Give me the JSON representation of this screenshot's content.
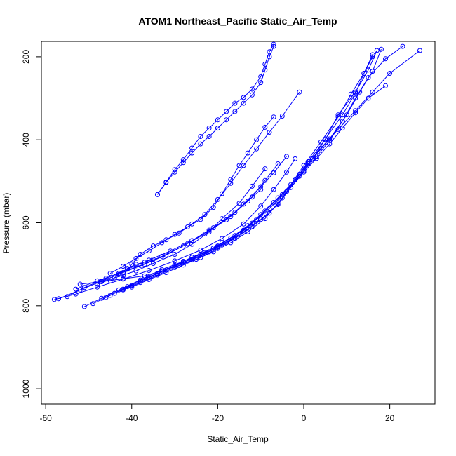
{
  "chart_data": {
    "type": "scatter",
    "title": "ATOM1 Northeast_Pacific Static_Air_Temp",
    "xlabel": "Static_Air_Temp",
    "ylabel": "Pressure (mbar)",
    "xlim": [
      -61,
      30.5
    ],
    "ylim": [
      1037,
      163
    ],
    "y_axis_reversed": true,
    "x_ticks": [
      -60,
      -40,
      -20,
      0,
      20
    ],
    "y_ticks": [
      200,
      400,
      600,
      800,
      1000
    ],
    "grid": false,
    "legend": "none",
    "marker": "open-circle",
    "series_color": "#0000ff",
    "series": [
      {
        "x": [
          -51,
          -47,
          -43,
          -38,
          -34,
          -30,
          -25,
          -20,
          -15,
          -11,
          -7,
          -3,
          0,
          4,
          8,
          11,
          14,
          16
        ],
        "y": [
          802,
          782,
          762,
          738,
          722,
          703,
          684,
          658,
          628,
          592,
          551,
          508,
          462,
          405,
          345,
          290,
          240,
          200
        ]
      },
      {
        "x": [
          -49,
          -45,
          -41,
          -37,
          -33,
          -28,
          -23,
          -19,
          -14,
          -10,
          -6,
          -2,
          1,
          5,
          8,
          12,
          15,
          17
        ],
        "y": [
          795,
          775,
          754,
          733,
          713,
          693,
          672,
          648,
          618,
          580,
          540,
          497,
          453,
          400,
          340,
          285,
          232,
          185
        ]
      },
      {
        "x": [
          -46,
          -42,
          -38,
          -34,
          -30,
          -26,
          -21,
          -17,
          -13,
          -9,
          -5,
          -1,
          2,
          5,
          9,
          12,
          14,
          16
        ],
        "y": [
          780,
          760,
          741,
          722,
          703,
          683,
          661,
          637,
          607,
          572,
          532,
          488,
          447,
          398,
          340,
          288,
          240,
          195
        ]
      },
      {
        "x": [
          -44,
          -40,
          -36,
          -32,
          -28,
          -24,
          -20,
          -16,
          -12,
          -8,
          -4,
          -1,
          2,
          6,
          10,
          13,
          16,
          18
        ],
        "y": [
          770,
          751,
          732,
          714,
          696,
          676,
          656,
          631,
          601,
          566,
          525,
          483,
          446,
          398,
          340,
          285,
          235,
          182
        ]
      },
      {
        "x": [
          -42,
          -38,
          -34,
          -30,
          -26,
          -22,
          -18,
          -14,
          -10,
          -6,
          -3,
          0,
          3,
          6,
          9,
          12,
          15,
          19,
          23
        ],
        "y": [
          762,
          744,
          726,
          708,
          690,
          670,
          648,
          622,
          592,
          556,
          515,
          475,
          440,
          402,
          355,
          300,
          250,
          205,
          175
        ]
      },
      {
        "x": [
          -40,
          -36,
          -32,
          -28,
          -24,
          -20,
          -16,
          -12,
          -8,
          -5,
          -2,
          1,
          4,
          8,
          12,
          16,
          20,
          27
        ],
        "y": [
          755,
          737,
          720,
          702,
          684,
          662,
          638,
          610,
          577,
          540,
          497,
          458,
          420,
          375,
          330,
          285,
          240,
          185
        ]
      },
      {
        "x": [
          -52,
          -47,
          -42,
          -37,
          -33,
          -29,
          -25,
          -21,
          -17,
          -13,
          -9,
          -6,
          -3,
          0,
          3,
          6,
          9,
          12,
          15,
          19
        ],
        "y": [
          748,
          742,
          735,
          728,
          716,
          703,
          688,
          670,
          648,
          622,
          590,
          553,
          515,
          478,
          445,
          410,
          372,
          335,
          300,
          270
        ]
      },
      {
        "x": [
          -58,
          -53,
          -48,
          -42,
          -36,
          -30,
          -24,
          -19,
          -14,
          -10,
          -7,
          -4,
          -2
        ],
        "y": [
          785,
          772,
          755,
          736,
          715,
          692,
          666,
          638,
          603,
          560,
          520,
          478,
          446
        ]
      },
      {
        "x": [
          -57,
          -52,
          -47,
          -42,
          -37,
          -32,
          -27,
          -22,
          -17,
          -13,
          -10
        ],
        "y": [
          783,
          762,
          741,
          720,
          700,
          678,
          650,
          618,
          585,
          548,
          520
        ]
      },
      {
        "x": [
          -55,
          -51,
          -46,
          -41,
          -36,
          -31,
          -26,
          -21,
          -16,
          -12,
          -9,
          -6
        ],
        "y": [
          778,
          756,
          734,
          712,
          690,
          668,
          643,
          612,
          575,
          538,
          498,
          458
        ]
      },
      {
        "x": [
          -53,
          -48,
          -43,
          -38,
          -33,
          -28,
          -23,
          -18,
          -14,
          -10,
          -7,
          -4
        ],
        "y": [
          760,
          740,
          722,
          703,
          681,
          656,
          627,
          593,
          555,
          513,
          480,
          440
        ]
      },
      {
        "x": [
          -48,
          -44,
          -39,
          -35,
          -30,
          -26,
          -22,
          -19,
          -15,
          -12,
          -9
        ],
        "y": [
          748,
          733,
          716,
          698,
          676,
          652,
          622,
          590,
          553,
          512,
          470
        ]
      },
      {
        "x": [
          -45,
          -42,
          -39,
          -36,
          -33,
          -30,
          -27,
          -24,
          -21,
          -19,
          -17,
          -15,
          -13,
          -11,
          -9,
          -7
        ],
        "y": [
          722,
          705,
          686,
          668,
          648,
          628,
          610,
          592,
          563,
          530,
          496,
          462,
          432,
          400,
          370,
          345
        ]
      },
      {
        "x": [
          -42,
          -40,
          -38,
          -35,
          -32,
          -29,
          -26,
          -23,
          -20,
          -17,
          -14,
          -11,
          -8,
          -5,
          -1
        ],
        "y": [
          728,
          700,
          676,
          656,
          641,
          625,
          603,
          580,
          544,
          505,
          462,
          422,
          382,
          343,
          285
        ]
      },
      {
        "x": [
          -34,
          -32,
          -30,
          -28,
          -26,
          -24,
          -22,
          -20,
          -18,
          -16,
          -14,
          -12,
          -10,
          -9,
          -8,
          -7
        ],
        "y": [
          532,
          502,
          472,
          448,
          420,
          392,
          372,
          352,
          332,
          312,
          298,
          278,
          248,
          218,
          188,
          170
        ]
      },
      {
        "x": [
          -34,
          -32,
          -30,
          -28,
          -26,
          -24,
          -22,
          -20,
          -18,
          -16,
          -14,
          -12,
          -10,
          -9,
          -8,
          -7
        ],
        "y": [
          532,
          503,
          478,
          455,
          432,
          410,
          392,
          372,
          352,
          332,
          312,
          292,
          262,
          232,
          200,
          175
        ]
      },
      {
        "x": [
          -45,
          -43,
          -41,
          -39,
          -37,
          -35
        ],
        "y": [
          740,
          725,
          710,
          700,
          695,
          688
        ]
      }
    ]
  }
}
